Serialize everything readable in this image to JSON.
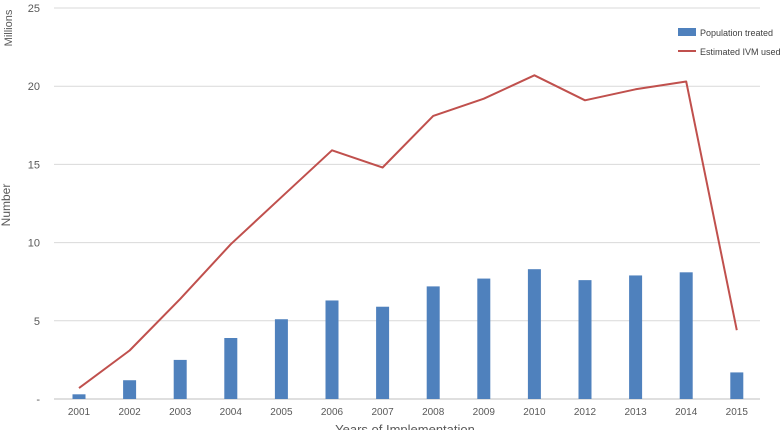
{
  "chart_data": {
    "type": "bar",
    "categories": [
      "2001",
      "2002",
      "2003",
      "2004",
      "2005",
      "2006",
      "2007",
      "2008",
      "2009",
      "2010",
      "2012",
      "2013",
      "2014",
      "2015"
    ],
    "series": [
      {
        "name": "Population treated",
        "type": "bar",
        "color": "#4f81bd",
        "values": [
          0.3,
          1.2,
          2.5,
          3.9,
          5.1,
          6.3,
          5.9,
          7.2,
          7.7,
          8.3,
          7.6,
          7.9,
          8.1,
          1.7
        ]
      },
      {
        "name": "Estimated IVM used",
        "type": "line",
        "color": "#c0504d",
        "values": [
          0.7,
          3.1,
          6.4,
          9.9,
          12.9,
          15.9,
          14.8,
          18.1,
          19.2,
          20.7,
          19.1,
          19.8,
          20.3,
          4.4
        ]
      }
    ],
    "ylim": [
      0,
      25
    ],
    "yticks": [
      0,
      5,
      10,
      15,
      20,
      25
    ],
    "ytick_labels": [
      "-",
      "5",
      "10",
      "15",
      "20",
      "25"
    ],
    "ylabel": "Number",
    "yunit_label": "Millions",
    "xlabel": "Years of Implementation",
    "grid": "horizontal",
    "legend_position": "top-right"
  }
}
